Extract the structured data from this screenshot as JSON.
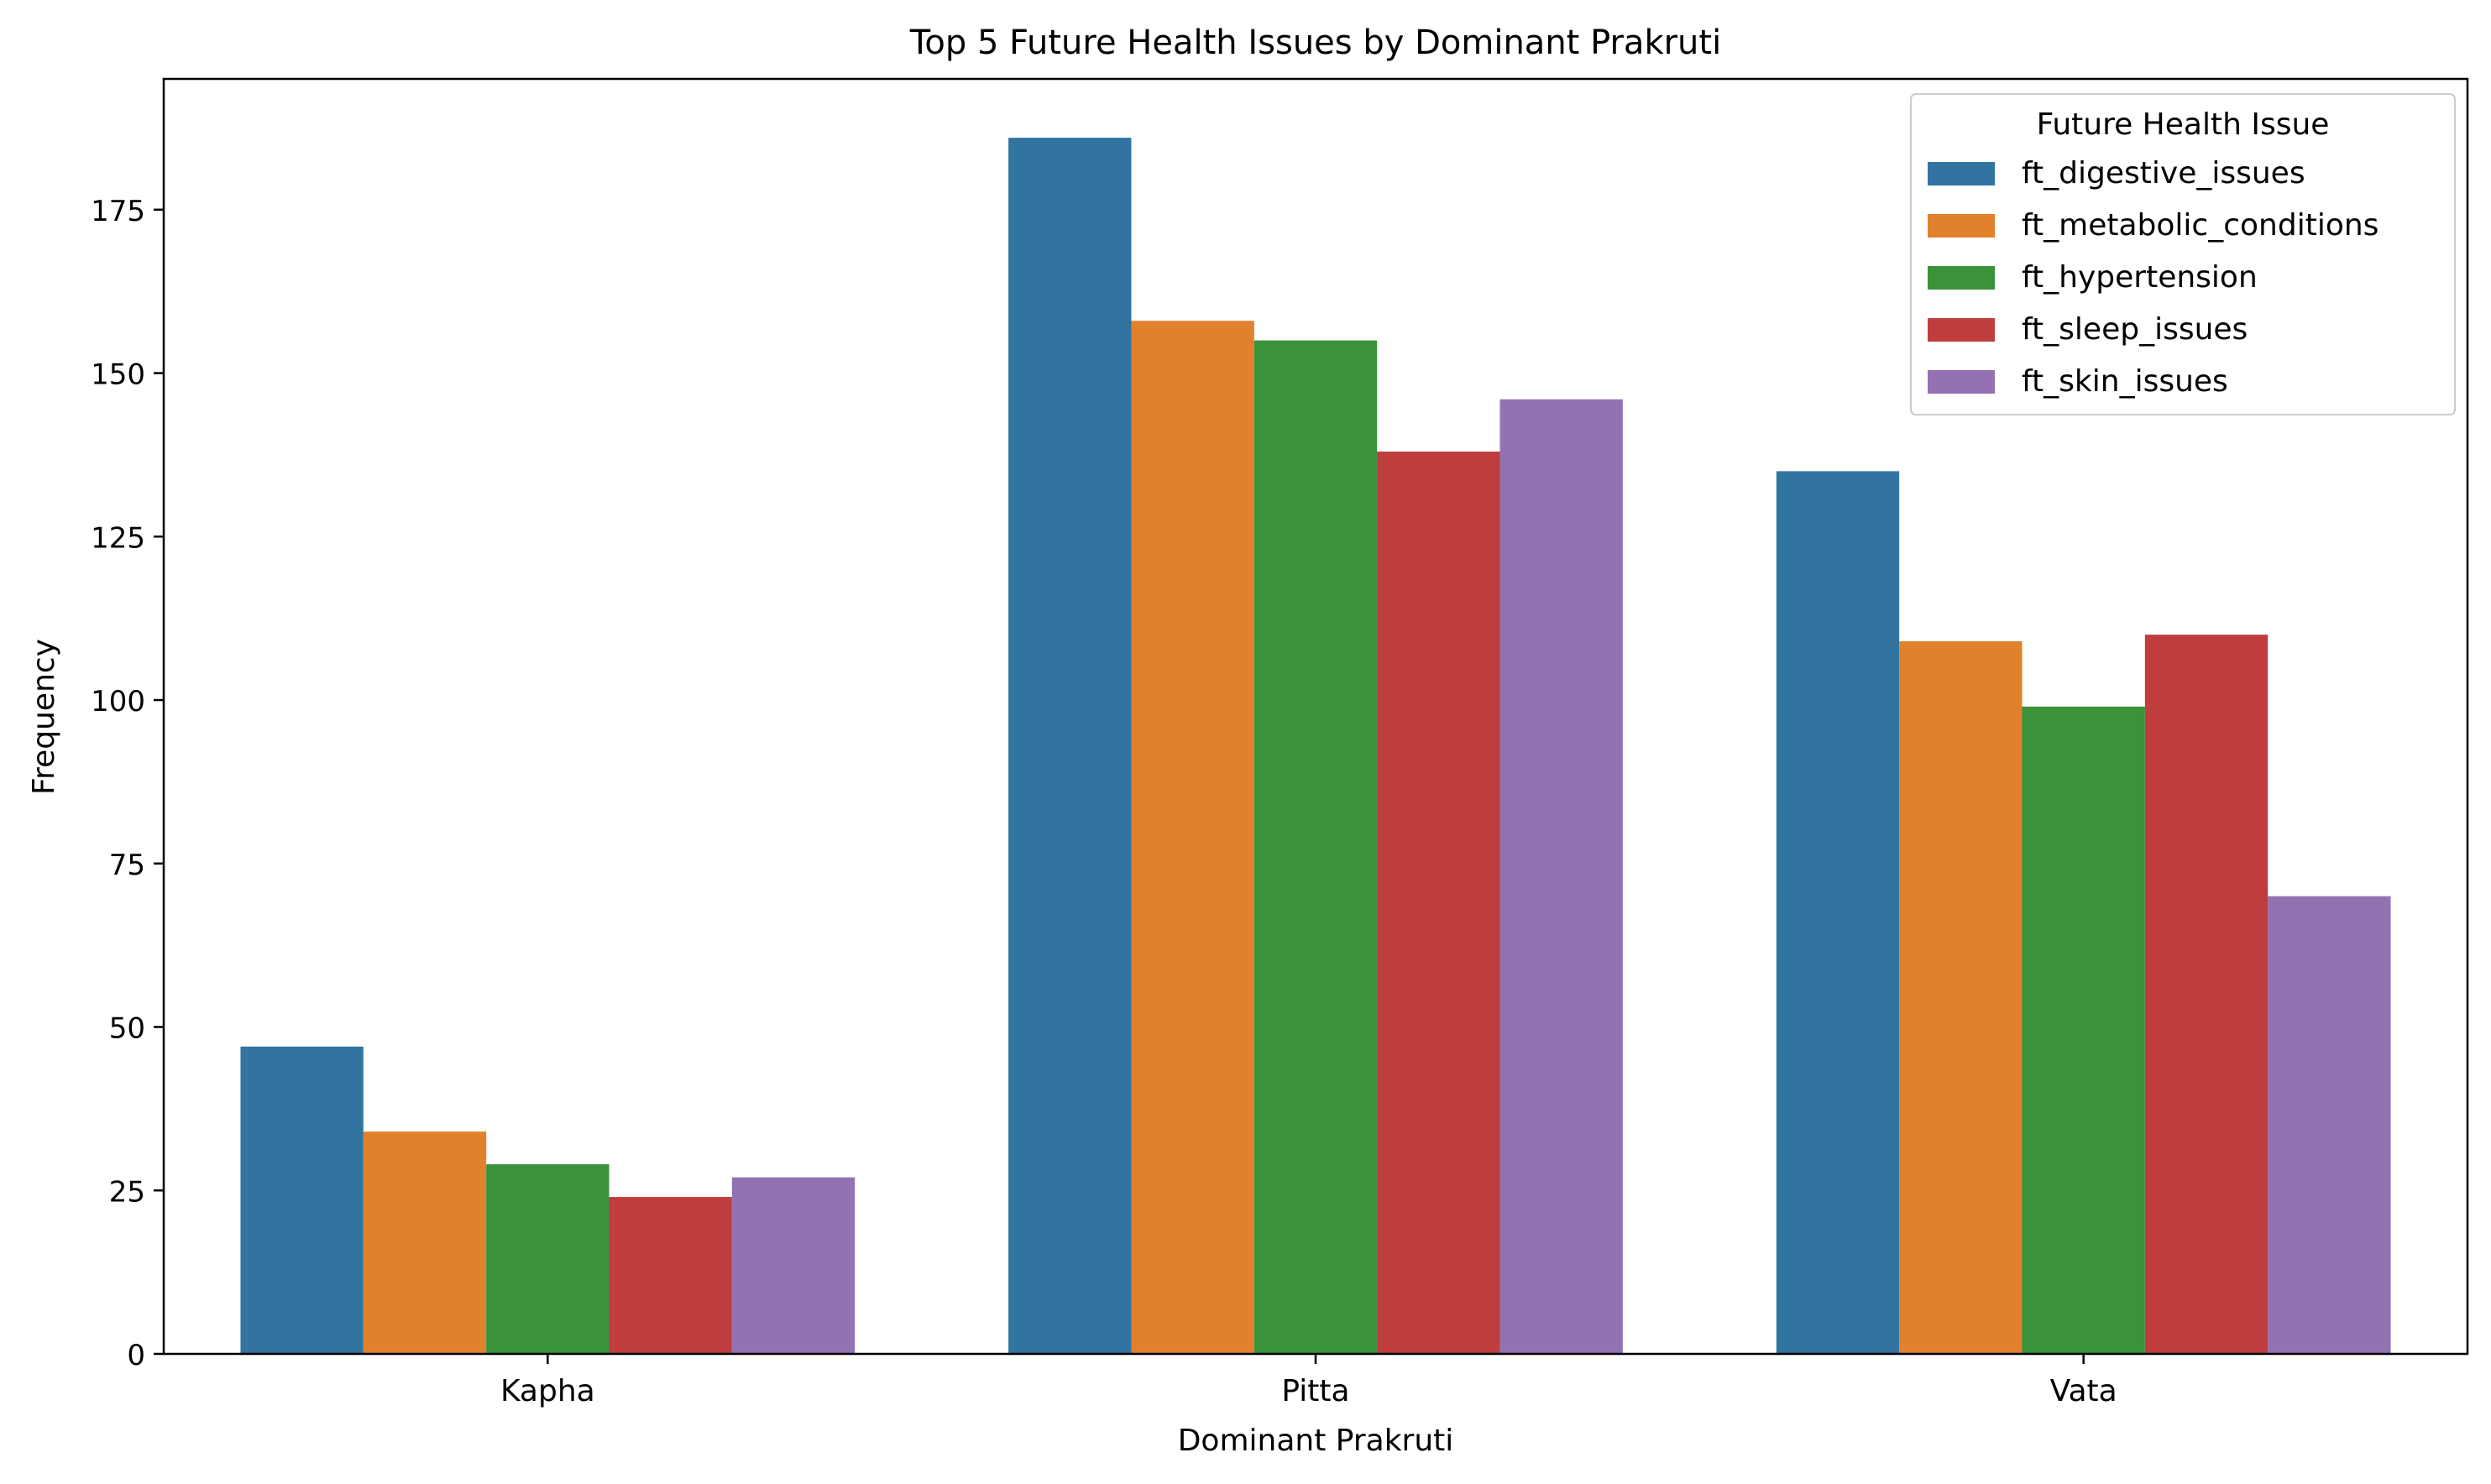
{
  "chart_data": {
    "type": "bar",
    "title": "Top 5 Future Health Issues by Dominant Prakruti",
    "xlabel": "Dominant Prakruti",
    "ylabel": "Frequency",
    "categories": [
      "Kapha",
      "Pitta",
      "Vata"
    ],
    "series": [
      {
        "name": "ft_digestive_issues",
        "color": "#3274a1",
        "values": [
          47,
          186,
          135
        ]
      },
      {
        "name": "ft_metabolic_conditions",
        "color": "#e1812c",
        "values": [
          34,
          158,
          109
        ]
      },
      {
        "name": "ft_hypertension",
        "color": "#3a923a",
        "values": [
          29,
          155,
          99
        ]
      },
      {
        "name": "ft_sleep_issues",
        "color": "#c03d3e",
        "values": [
          24,
          138,
          110
        ]
      },
      {
        "name": "ft_skin_issues",
        "color": "#9372b2",
        "values": [
          27,
          146,
          70
        ]
      }
    ],
    "ylim": [
      0,
      195
    ],
    "yticks": [
      0,
      25,
      50,
      75,
      100,
      125,
      150,
      175
    ],
    "grid": false,
    "legend": {
      "title": "Future Health Issue",
      "placement": "top-right"
    }
  }
}
